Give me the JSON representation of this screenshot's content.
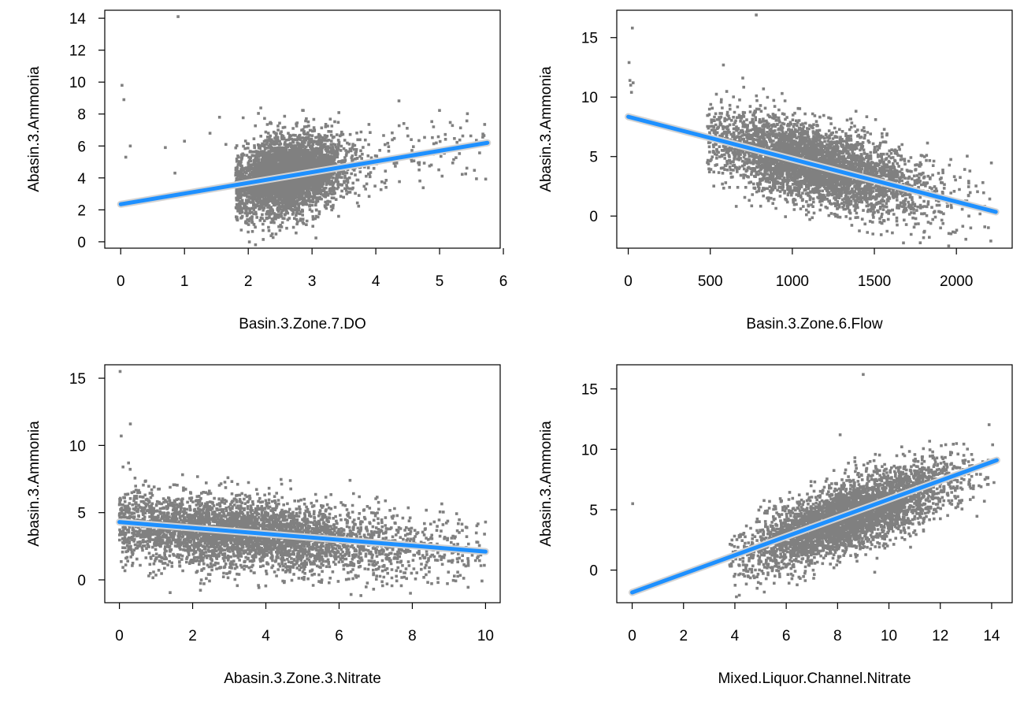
{
  "colors": {
    "points": "#808080",
    "fit_line": "#1E90FF",
    "confidence_band": "#D3D3D3",
    "axis": "#000000",
    "background": "#FFFFFF"
  },
  "chart_data": [
    {
      "type": "scatter",
      "title": "",
      "xlabel": "Basin.3.Zone.7.DO",
      "ylabel": "Abasin.3.Ammonia",
      "xlim": [
        -0.25,
        5.95
      ],
      "ylim": [
        -0.4,
        14.5
      ],
      "xticks": [
        0,
        1,
        2,
        3,
        4,
        5,
        6
      ],
      "yticks": [
        0,
        2,
        4,
        6,
        8,
        10,
        12,
        14
      ],
      "cloud": {
        "x_min": 1.8,
        "x_max": 5.75,
        "x_center": 2.6,
        "y_center": 4.2,
        "x_spread": 0.45,
        "y_spread": 1.2
      },
      "outliers": [
        [
          0.02,
          9.8
        ],
        [
          0.05,
          8.9
        ],
        [
          0.08,
          5.3
        ],
        [
          0.15,
          6.0
        ],
        [
          0.7,
          5.9
        ],
        [
          0.85,
          4.3
        ],
        [
          0.9,
          14.1
        ],
        [
          1.0,
          6.3
        ],
        [
          1.4,
          6.8
        ],
        [
          1.55,
          7.8
        ],
        [
          1.65,
          6.1
        ]
      ],
      "fit": {
        "x": [
          0,
          5.75
        ],
        "y": [
          2.35,
          6.2
        ]
      },
      "grid": false,
      "legend": "none"
    },
    {
      "type": "scatter",
      "title": "",
      "xlabel": "Basin.3.Zone.6.Flow",
      "ylabel": "Abasin.3.Ammonia",
      "xlim": [
        -70,
        2340
      ],
      "ylim": [
        -2.7,
        17.3
      ],
      "xticks": [
        0,
        500,
        1000,
        1500,
        2000
      ],
      "yticks": [
        0,
        5,
        10,
        15
      ],
      "cloud": {
        "x_min": 480,
        "x_max": 2240,
        "x_center": 1150,
        "y_center": 4.5,
        "x_spread": 330,
        "y_spread": 1.6
      },
      "outliers": [
        [
          5,
          12.9
        ],
        [
          10,
          11.4
        ],
        [
          15,
          11.0
        ],
        [
          20,
          10.4
        ],
        [
          25,
          15.8
        ],
        [
          30,
          11.2
        ],
        [
          580,
          12.7
        ],
        [
          780,
          16.9
        ],
        [
          2210,
          -2.1
        ]
      ],
      "fit": {
        "x": [
          0,
          2240
        ],
        "y": [
          8.35,
          0.35
        ]
      },
      "grid": false,
      "legend": "none"
    },
    {
      "type": "scatter",
      "title": "",
      "xlabel": "Abasin.3.Zone.3.Nitrate",
      "ylabel": "Abasin.3.Ammonia",
      "xlim": [
        -0.4,
        10.4
      ],
      "ylim": [
        -1.7,
        16.0
      ],
      "xticks": [
        0,
        2,
        4,
        6,
        8,
        10
      ],
      "yticks": [
        0,
        5,
        10,
        15
      ],
      "cloud": {
        "x_min": 0,
        "x_max": 10,
        "x_center": 3.0,
        "y_center": 3.4,
        "x_spread": 2.4,
        "y_spread": 1.3
      },
      "outliers": [
        [
          0.02,
          15.5
        ],
        [
          0.05,
          10.7
        ],
        [
          0.1,
          8.4
        ],
        [
          0.3,
          11.6
        ],
        [
          0.25,
          8.7
        ],
        [
          6.3,
          7.4
        ],
        [
          4.5,
          -0.2
        ],
        [
          10.0,
          4.3
        ]
      ],
      "fit": {
        "x": [
          0,
          10
        ],
        "y": [
          4.3,
          2.1
        ]
      },
      "grid": false,
      "legend": "none"
    },
    {
      "type": "scatter",
      "title": "",
      "xlabel": "Mixed.Liquor.Channel.Nitrate",
      "ylabel": "Abasin.3.Ammonia",
      "xlim": [
        -0.6,
        14.8
      ],
      "ylim": [
        -2.7,
        17.0
      ],
      "xticks": [
        0,
        2,
        4,
        6,
        8,
        10,
        12,
        14
      ],
      "yticks": [
        0,
        5,
        10,
        15
      ],
      "cloud": {
        "x_min": 3.8,
        "x_max": 14.2,
        "x_center": 8.5,
        "y_center": 4.2,
        "x_spread": 2.0,
        "y_spread": 1.4
      },
      "outliers": [
        [
          0.02,
          5.5
        ],
        [
          9.0,
          16.2
        ],
        [
          8.1,
          11.2
        ]
      ],
      "fit": {
        "x": [
          0,
          14.2
        ],
        "y": [
          -1.85,
          9.1
        ]
      },
      "grid": false,
      "legend": "none"
    }
  ]
}
